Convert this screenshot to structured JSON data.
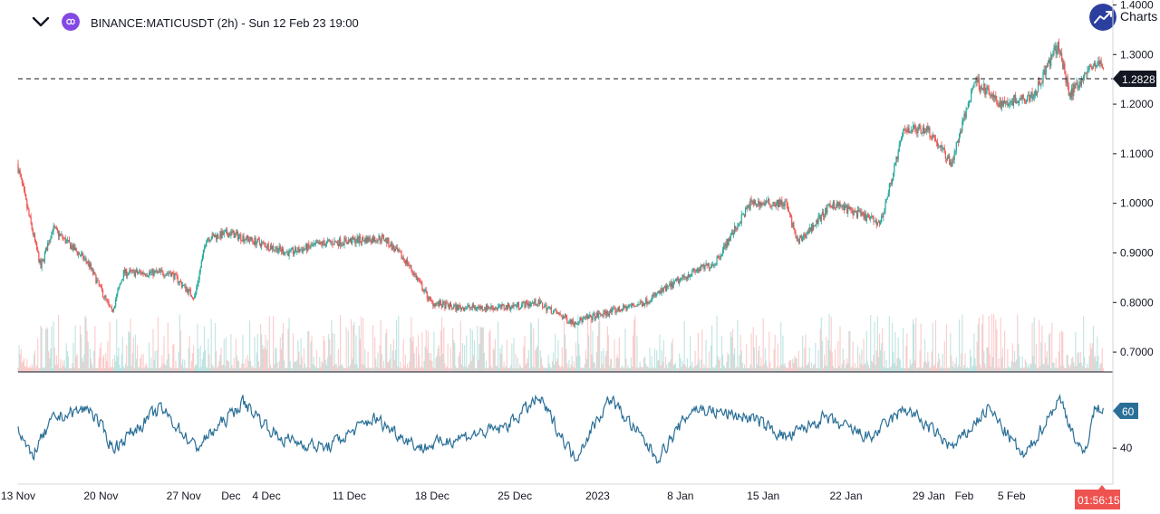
{
  "header": {
    "symbol_title": "BINANCE:MATICUSDT (2h) - Sun 12 Feb 23 19:00",
    "logo_text": "Charts",
    "collapse_icon": "chevron-down-icon",
    "coin_icon": "polygon-matic-icon",
    "logo_icon": "trend-up-icon"
  },
  "colors": {
    "up": "#26a69a",
    "down": "#ef5350",
    "indicator": "#2a6f97",
    "crosshair": "#131722",
    "countdown": "#ef5350",
    "logo": "#2a3f9e",
    "coin": "#8247e5"
  },
  "price_axis": {
    "ticks": [
      "1.4000",
      "1.3000",
      "1.2000",
      "1.1000",
      "1.0000",
      "0.9000",
      "0.8000",
      "0.7000"
    ],
    "current_price_label": "1.2828",
    "countdown_label": "01:56:15"
  },
  "indicator_axis": {
    "ticks": [
      "40"
    ],
    "current_value_label": "60"
  },
  "time_axis": {
    "labels": [
      "13 Nov",
      "20 Nov",
      "27 Nov",
      "Dec",
      "4 Dec",
      "11 Dec",
      "18 Dec",
      "25 Dec",
      "2023",
      "8 Jan",
      "15 Jan",
      "22 Jan",
      "29 Jan",
      "Feb",
      "5 Feb"
    ]
  },
  "chart_data": {
    "type": "candlestick",
    "symbol": "BINANCE:MATICUSDT",
    "interval": "2h",
    "ylim": [
      0.66,
      1.41
    ],
    "current_price": 1.2828,
    "price_path": [
      {
        "date": "13 Nov",
        "price": 1.08
      },
      {
        "date": "15 Nov",
        "price": 0.87
      },
      {
        "date": "16 Nov",
        "price": 0.95
      },
      {
        "date": "19 Nov",
        "price": 0.88
      },
      {
        "date": "21 Nov",
        "price": 0.78
      },
      {
        "date": "22 Nov",
        "price": 0.86
      },
      {
        "date": "26 Nov",
        "price": 0.86
      },
      {
        "date": "28 Nov",
        "price": 0.81
      },
      {
        "date": "29 Nov",
        "price": 0.93
      },
      {
        "date": "1 Dec",
        "price": 0.94
      },
      {
        "date": "6 Dec",
        "price": 0.9
      },
      {
        "date": "9 Dec",
        "price": 0.92
      },
      {
        "date": "14 Dec",
        "price": 0.93
      },
      {
        "date": "16 Dec",
        "price": 0.88
      },
      {
        "date": "18 Dec",
        "price": 0.8
      },
      {
        "date": "20 Dec",
        "price": 0.79
      },
      {
        "date": "24 Dec",
        "price": 0.79
      },
      {
        "date": "27 Dec",
        "price": 0.8
      },
      {
        "date": "30 Dec",
        "price": 0.76
      },
      {
        "date": "2 Jan",
        "price": 0.78
      },
      {
        "date": "5 Jan",
        "price": 0.8
      },
      {
        "date": "9 Jan",
        "price": 0.86
      },
      {
        "date": "11 Jan",
        "price": 0.88
      },
      {
        "date": "14 Jan",
        "price": 1.0
      },
      {
        "date": "17 Jan",
        "price": 1.0
      },
      {
        "date": "18 Jan",
        "price": 0.92
      },
      {
        "date": "21 Jan",
        "price": 1.0
      },
      {
        "date": "25 Jan",
        "price": 0.96
      },
      {
        "date": "27 Jan",
        "price": 1.15
      },
      {
        "date": "29 Jan",
        "price": 1.15
      },
      {
        "date": "31 Jan",
        "price": 1.08
      },
      {
        "date": "2 Feb",
        "price": 1.25
      },
      {
        "date": "4 Feb",
        "price": 1.2
      },
      {
        "date": "7 Feb",
        "price": 1.22
      },
      {
        "date": "9 Feb",
        "price": 1.32
      },
      {
        "date": "10 Feb",
        "price": 1.22
      },
      {
        "date": "12 Feb",
        "price": 1.28
      }
    ],
    "indicator_path": [
      {
        "date": "13 Nov",
        "value": 50
      },
      {
        "date": "14 Nov",
        "value": 35
      },
      {
        "date": "16 Nov",
        "value": 55
      },
      {
        "date": "19 Nov",
        "value": 60
      },
      {
        "date": "21 Nov",
        "value": 40
      },
      {
        "date": "25 Nov",
        "value": 60
      },
      {
        "date": "28 Nov",
        "value": 40
      },
      {
        "date": "2 Dec",
        "value": 63
      },
      {
        "date": "5 Dec",
        "value": 45
      },
      {
        "date": "9 Dec",
        "value": 40
      },
      {
        "date": "13 Dec",
        "value": 55
      },
      {
        "date": "17 Dec",
        "value": 40
      },
      {
        "date": "20 Dec",
        "value": 45
      },
      {
        "date": "24 Dec",
        "value": 50
      },
      {
        "date": "27 Dec",
        "value": 65
      },
      {
        "date": "30 Dec",
        "value": 35
      },
      {
        "date": "2 Jan",
        "value": 65
      },
      {
        "date": "6 Jan",
        "value": 35
      },
      {
        "date": "9 Jan",
        "value": 60
      },
      {
        "date": "14 Jan",
        "value": 55
      },
      {
        "date": "17 Jan",
        "value": 45
      },
      {
        "date": "20 Jan",
        "value": 55
      },
      {
        "date": "24 Jan",
        "value": 45
      },
      {
        "date": "27 Jan",
        "value": 60
      },
      {
        "date": "31 Jan",
        "value": 40
      },
      {
        "date": "3 Feb",
        "value": 60
      },
      {
        "date": "6 Feb",
        "value": 35
      },
      {
        "date": "9 Feb",
        "value": 65
      },
      {
        "date": "11 Feb",
        "value": 35
      },
      {
        "date": "12 Feb",
        "value": 60
      }
    ]
  }
}
